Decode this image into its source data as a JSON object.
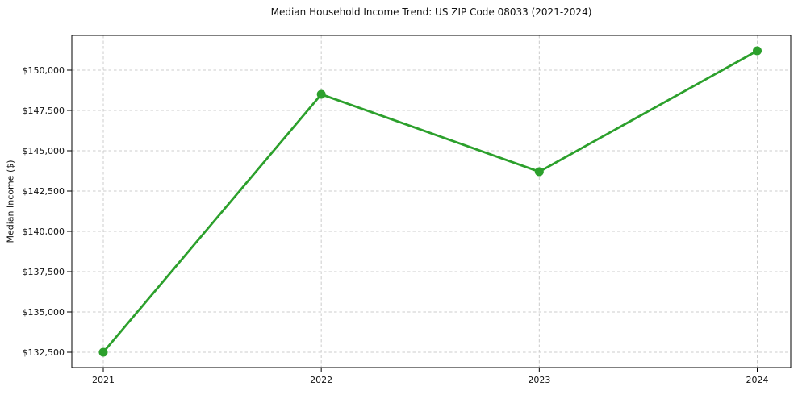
{
  "colors": {
    "line": "#2ca02c",
    "marker": "#2ca02c",
    "grid": "#cccccc",
    "spine": "#000000",
    "text": "#111111",
    "background": "#ffffff"
  },
  "chart_data": {
    "type": "line",
    "title": "Median Household Income Trend: US ZIP Code 08033 (2021-2024)",
    "xlabel": "",
    "ylabel": "Median Income ($)",
    "x": [
      "2021",
      "2022",
      "2023",
      "2024"
    ],
    "values": [
      132500,
      148500,
      143700,
      151200
    ],
    "y_ticks": [
      132500,
      135000,
      137500,
      140000,
      142500,
      145000,
      147500,
      150000
    ],
    "y_tick_labels": [
      "$132,500",
      "$135,000",
      "$137,500",
      "$140,000",
      "$142,500",
      "$145,000",
      "$147,500",
      "$150,000"
    ],
    "ylim": [
      131550,
      152150
    ],
    "grid": true,
    "grid_style": "dashed",
    "legend_position": "none",
    "marker_shape": "circle"
  }
}
